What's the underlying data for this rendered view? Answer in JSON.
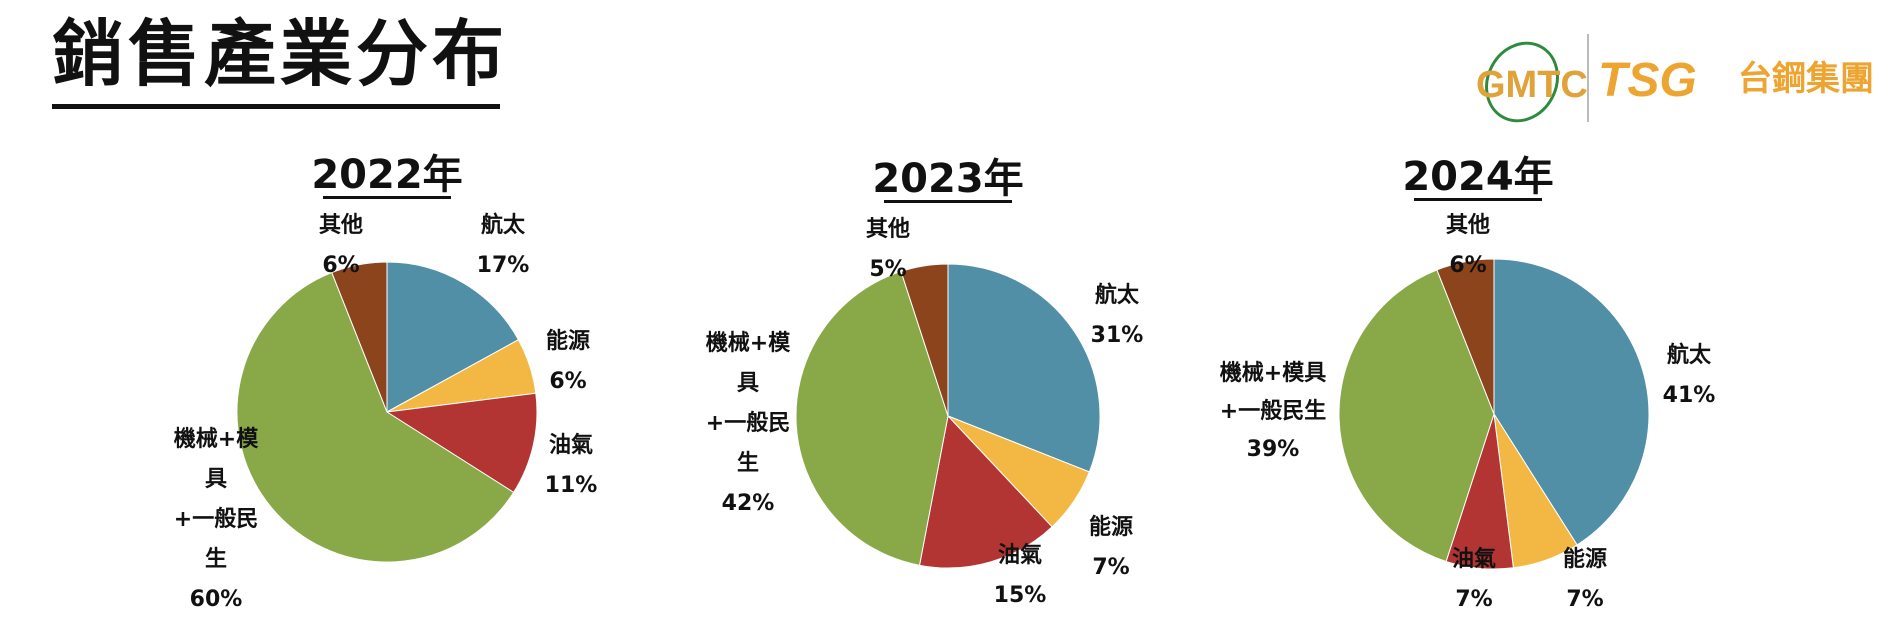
{
  "page": {
    "title": "銷售產業分布"
  },
  "logo": {
    "gmtc": "GMTC",
    "tsg": "TSG",
    "group": "台鋼集團"
  },
  "colors": {
    "aerospace": "#508fa5",
    "energy": "#f3b843",
    "oil_gas": "#b33533",
    "machinery": "#89a847",
    "other": "#8c441d",
    "title_underline": "#111111"
  },
  "chart_data": [
    {
      "type": "pie",
      "title": "2022年",
      "slices": [
        {
          "name": "航太",
          "value": 17,
          "label": "17%",
          "color": "#508fa5"
        },
        {
          "name": "能源",
          "value": 6,
          "label": "6%",
          "color": "#f3b843"
        },
        {
          "name": "油氣",
          "value": 11,
          "label": "11%",
          "color": "#b33533"
        },
        {
          "name": "機械+模具+一般民生",
          "value": 60,
          "label": "60%",
          "color": "#89a847",
          "label_lines": [
            "機械+模",
            "具",
            "+一般民",
            "生"
          ]
        },
        {
          "name": "其他",
          "value": 6,
          "label": "6%",
          "color": "#8c441d"
        }
      ]
    },
    {
      "type": "pie",
      "title": "2023年",
      "slices": [
        {
          "name": "航太",
          "value": 31,
          "label": "31%",
          "color": "#508fa5"
        },
        {
          "name": "能源",
          "value": 7,
          "label": "7%",
          "color": "#f3b843"
        },
        {
          "name": "油氣",
          "value": 15,
          "label": "15%",
          "color": "#b33533"
        },
        {
          "name": "機械+模具+一般民生",
          "value": 42,
          "label": "42%",
          "color": "#89a847",
          "label_lines": [
            "機械+模",
            "具",
            "+一般民",
            "生"
          ]
        },
        {
          "name": "其他",
          "value": 5,
          "label": "5%",
          "color": "#8c441d"
        }
      ]
    },
    {
      "type": "pie",
      "title": "2024年",
      "slices": [
        {
          "name": "航太",
          "value": 41,
          "label": "41%",
          "color": "#508fa5"
        },
        {
          "name": "能源",
          "value": 7,
          "label": "7%",
          "color": "#f3b843"
        },
        {
          "name": "油氣",
          "value": 7,
          "label": "7%",
          "color": "#b33533"
        },
        {
          "name": "機械+模具+一般民生",
          "value": 39,
          "label": "39%",
          "color": "#89a847",
          "label_lines": [
            "機械+模具",
            "+一般民生"
          ]
        },
        {
          "name": "其他",
          "value": 6,
          "label": "6%",
          "color": "#8c441d"
        }
      ]
    }
  ]
}
